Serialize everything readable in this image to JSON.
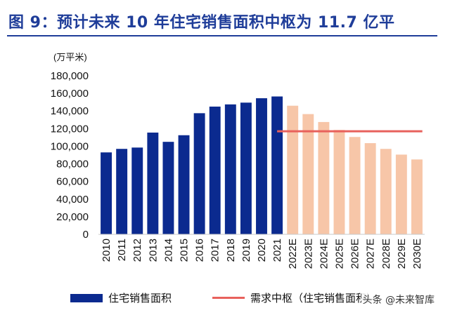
{
  "title": "图 9：预计未来 10 年住宅销售面积中枢为 11.7 亿平",
  "colors": {
    "title": "#1f3d99",
    "actual_bar": "#0b2a8f",
    "forecast_bar": "#f7c6a8",
    "demand_line": "#e8615c"
  },
  "chart_data": {
    "type": "bar",
    "unit_label": "(万平米)",
    "categories": [
      "2010",
      "2011",
      "2012",
      "2013",
      "2014",
      "2015",
      "2016",
      "2017",
      "2018",
      "2019",
      "2020",
      "2021",
      "2022E",
      "2023E",
      "2024E",
      "2025E",
      "2026E",
      "2027E",
      "2028E",
      "2029E",
      "2030E"
    ],
    "series": [
      {
        "name": "住宅销售面积",
        "values": [
          93000,
          97000,
          98500,
          115500,
          105000,
          112500,
          137500,
          145000,
          147500,
          149500,
          154500,
          156500,
          146000,
          136500,
          127500,
          118500,
          110500,
          103500,
          97000,
          90500,
          85000
        ]
      },
      {
        "name": "需求中枢（住宅销售面积）",
        "kind": "line",
        "value": 117000,
        "from": "2021",
        "to": "2030E"
      }
    ],
    "forecast_start": "2022E",
    "ylim": [
      0,
      180000
    ],
    "yticks": [
      0,
      20000,
      40000,
      60000,
      80000,
      100000,
      120000,
      140000,
      160000,
      180000
    ],
    "ytick_labels": [
      "0",
      "20,000",
      "40,000",
      "60,000",
      "80,000",
      "100,000",
      "120,000",
      "140,000",
      "160,000",
      "180,000"
    ]
  },
  "legend": {
    "bar_label": "住宅销售面积",
    "line_label": "需求中枢（住宅销售面积）"
  },
  "watermark": "头条 @未来智库"
}
